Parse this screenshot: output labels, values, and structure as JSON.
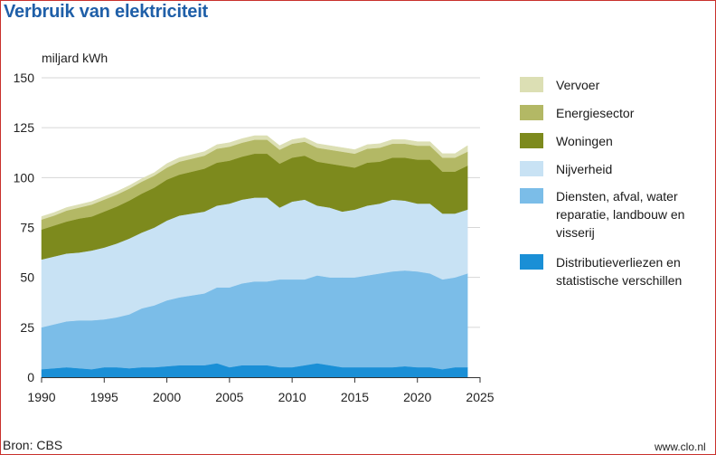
{
  "chart_data": {
    "type": "area",
    "stacked": true,
    "title": "Verbruik van elektriciteit",
    "ylabel": "miljard kWh",
    "xlabel": "",
    "x": [
      1990,
      1991,
      1992,
      1993,
      1994,
      1995,
      1996,
      1997,
      1998,
      1999,
      2000,
      2001,
      2002,
      2003,
      2004,
      2005,
      2006,
      2007,
      2008,
      2009,
      2010,
      2011,
      2012,
      2013,
      2014,
      2015,
      2016,
      2017,
      2018,
      2019,
      2020,
      2021,
      2022,
      2023,
      2024
    ],
    "xlim": [
      1990,
      2025
    ],
    "ylim": [
      0,
      150
    ],
    "xticks": [
      1990,
      1995,
      2000,
      2005,
      2010,
      2015,
      2020,
      2025
    ],
    "yticks": [
      0,
      25,
      50,
      75,
      100,
      125,
      150
    ],
    "grid": "horizontal",
    "series": [
      {
        "name": "Distributieverliezen en statistische verschillen",
        "color": "#1a8fd6",
        "values": [
          4,
          4.5,
          5,
          4.5,
          4,
          5,
          5,
          4.5,
          5,
          5,
          5.5,
          6,
          6,
          6,
          7,
          5,
          6,
          6,
          6,
          5,
          5,
          6,
          7,
          6,
          5,
          5,
          5,
          5,
          5,
          5.5,
          5,
          5,
          4,
          5,
          5
        ]
      },
      {
        "name": "Diensten, afval, water reparatie, landbouw en visserij",
        "color": "#7bbde8",
        "values": [
          21,
          22,
          23,
          24,
          24.5,
          24,
          25,
          27,
          29.5,
          31,
          33,
          34,
          35,
          36,
          38,
          40,
          41,
          42,
          42,
          44,
          44,
          43,
          44,
          44,
          45,
          45,
          46,
          47,
          48,
          48,
          48,
          47,
          45,
          45,
          47
        ]
      },
      {
        "name": "Nijverheid",
        "color": "#c8e2f4",
        "values": [
          34,
          34,
          34,
          34,
          35,
          36,
          37,
          38,
          38,
          39,
          40,
          41,
          41,
          41,
          41,
          42,
          42,
          42,
          42,
          36,
          39,
          40,
          35,
          35,
          33,
          34,
          35,
          35,
          36,
          35,
          34,
          35,
          33,
          32,
          32
        ]
      },
      {
        "name": "Woningen",
        "color": "#7d8a1d",
        "values": [
          15,
          15.5,
          16,
          17,
          17,
          18,
          18.5,
          19,
          19.5,
          20,
          20.5,
          20.5,
          21,
          21.5,
          21.5,
          21.5,
          21.5,
          22,
          22,
          22,
          22,
          22,
          22,
          22,
          23,
          21,
          21.5,
          21,
          21,
          21.5,
          22,
          22,
          21,
          21,
          22
        ]
      },
      {
        "name": "Energiesector",
        "color": "#b3b865",
        "values": [
          5,
          5,
          5.5,
          5.5,
          6,
          6,
          6,
          6,
          6,
          6,
          6,
          6.5,
          6.5,
          6.5,
          7,
          7,
          7,
          7,
          7,
          7,
          7,
          7,
          7,
          7,
          7,
          7,
          7,
          7,
          7,
          7,
          7,
          7,
          7,
          7,
          7
        ]
      },
      {
        "name": "Vervoer",
        "color": "#dcdfb4",
        "values": [
          1.5,
          1.5,
          1.5,
          1.5,
          1.5,
          1.5,
          1.5,
          1.5,
          1.5,
          1.5,
          2,
          2,
          2,
          2,
          2,
          2,
          2,
          2,
          2,
          2,
          2,
          2,
          2,
          2,
          2,
          2,
          2,
          2,
          2,
          2,
          2,
          2,
          2,
          2,
          3
        ]
      }
    ],
    "legend": {
      "placement": "right",
      "order": [
        "Vervoer",
        "Energiesector",
        "Woningen",
        "Nijverheid",
        "Diensten, afval, water reparatie, landbouw en visserij",
        "Distributieverliezen en statistische verschillen"
      ],
      "items": [
        {
          "lines": [
            "Vervoer"
          ],
          "color": "#dcdfb4"
        },
        {
          "lines": [
            "Energiesector"
          ],
          "color": "#b3b865"
        },
        {
          "lines": [
            "Woningen"
          ],
          "color": "#7d8a1d"
        },
        {
          "lines": [
            "Nijverheid"
          ],
          "color": "#c8e2f4"
        },
        {
          "lines": [
            "Diensten, afval, water",
            "reparatie, landbouw en",
            "visserij"
          ],
          "color": "#7bbde8"
        },
        {
          "lines": [
            "Distributieverliezen en",
            "statistische verschillen"
          ],
          "color": "#1a8fd6"
        }
      ]
    }
  },
  "page": {
    "title": "Verbruik van elektriciteit",
    "unit": "miljard kWh",
    "source": "Bron: CBS",
    "url": "www.clo.nl"
  },
  "colors": {
    "title": "#1f5fa8",
    "frame": "#c9302c",
    "grid": "#d6d6d6",
    "axis": "#333333"
  }
}
